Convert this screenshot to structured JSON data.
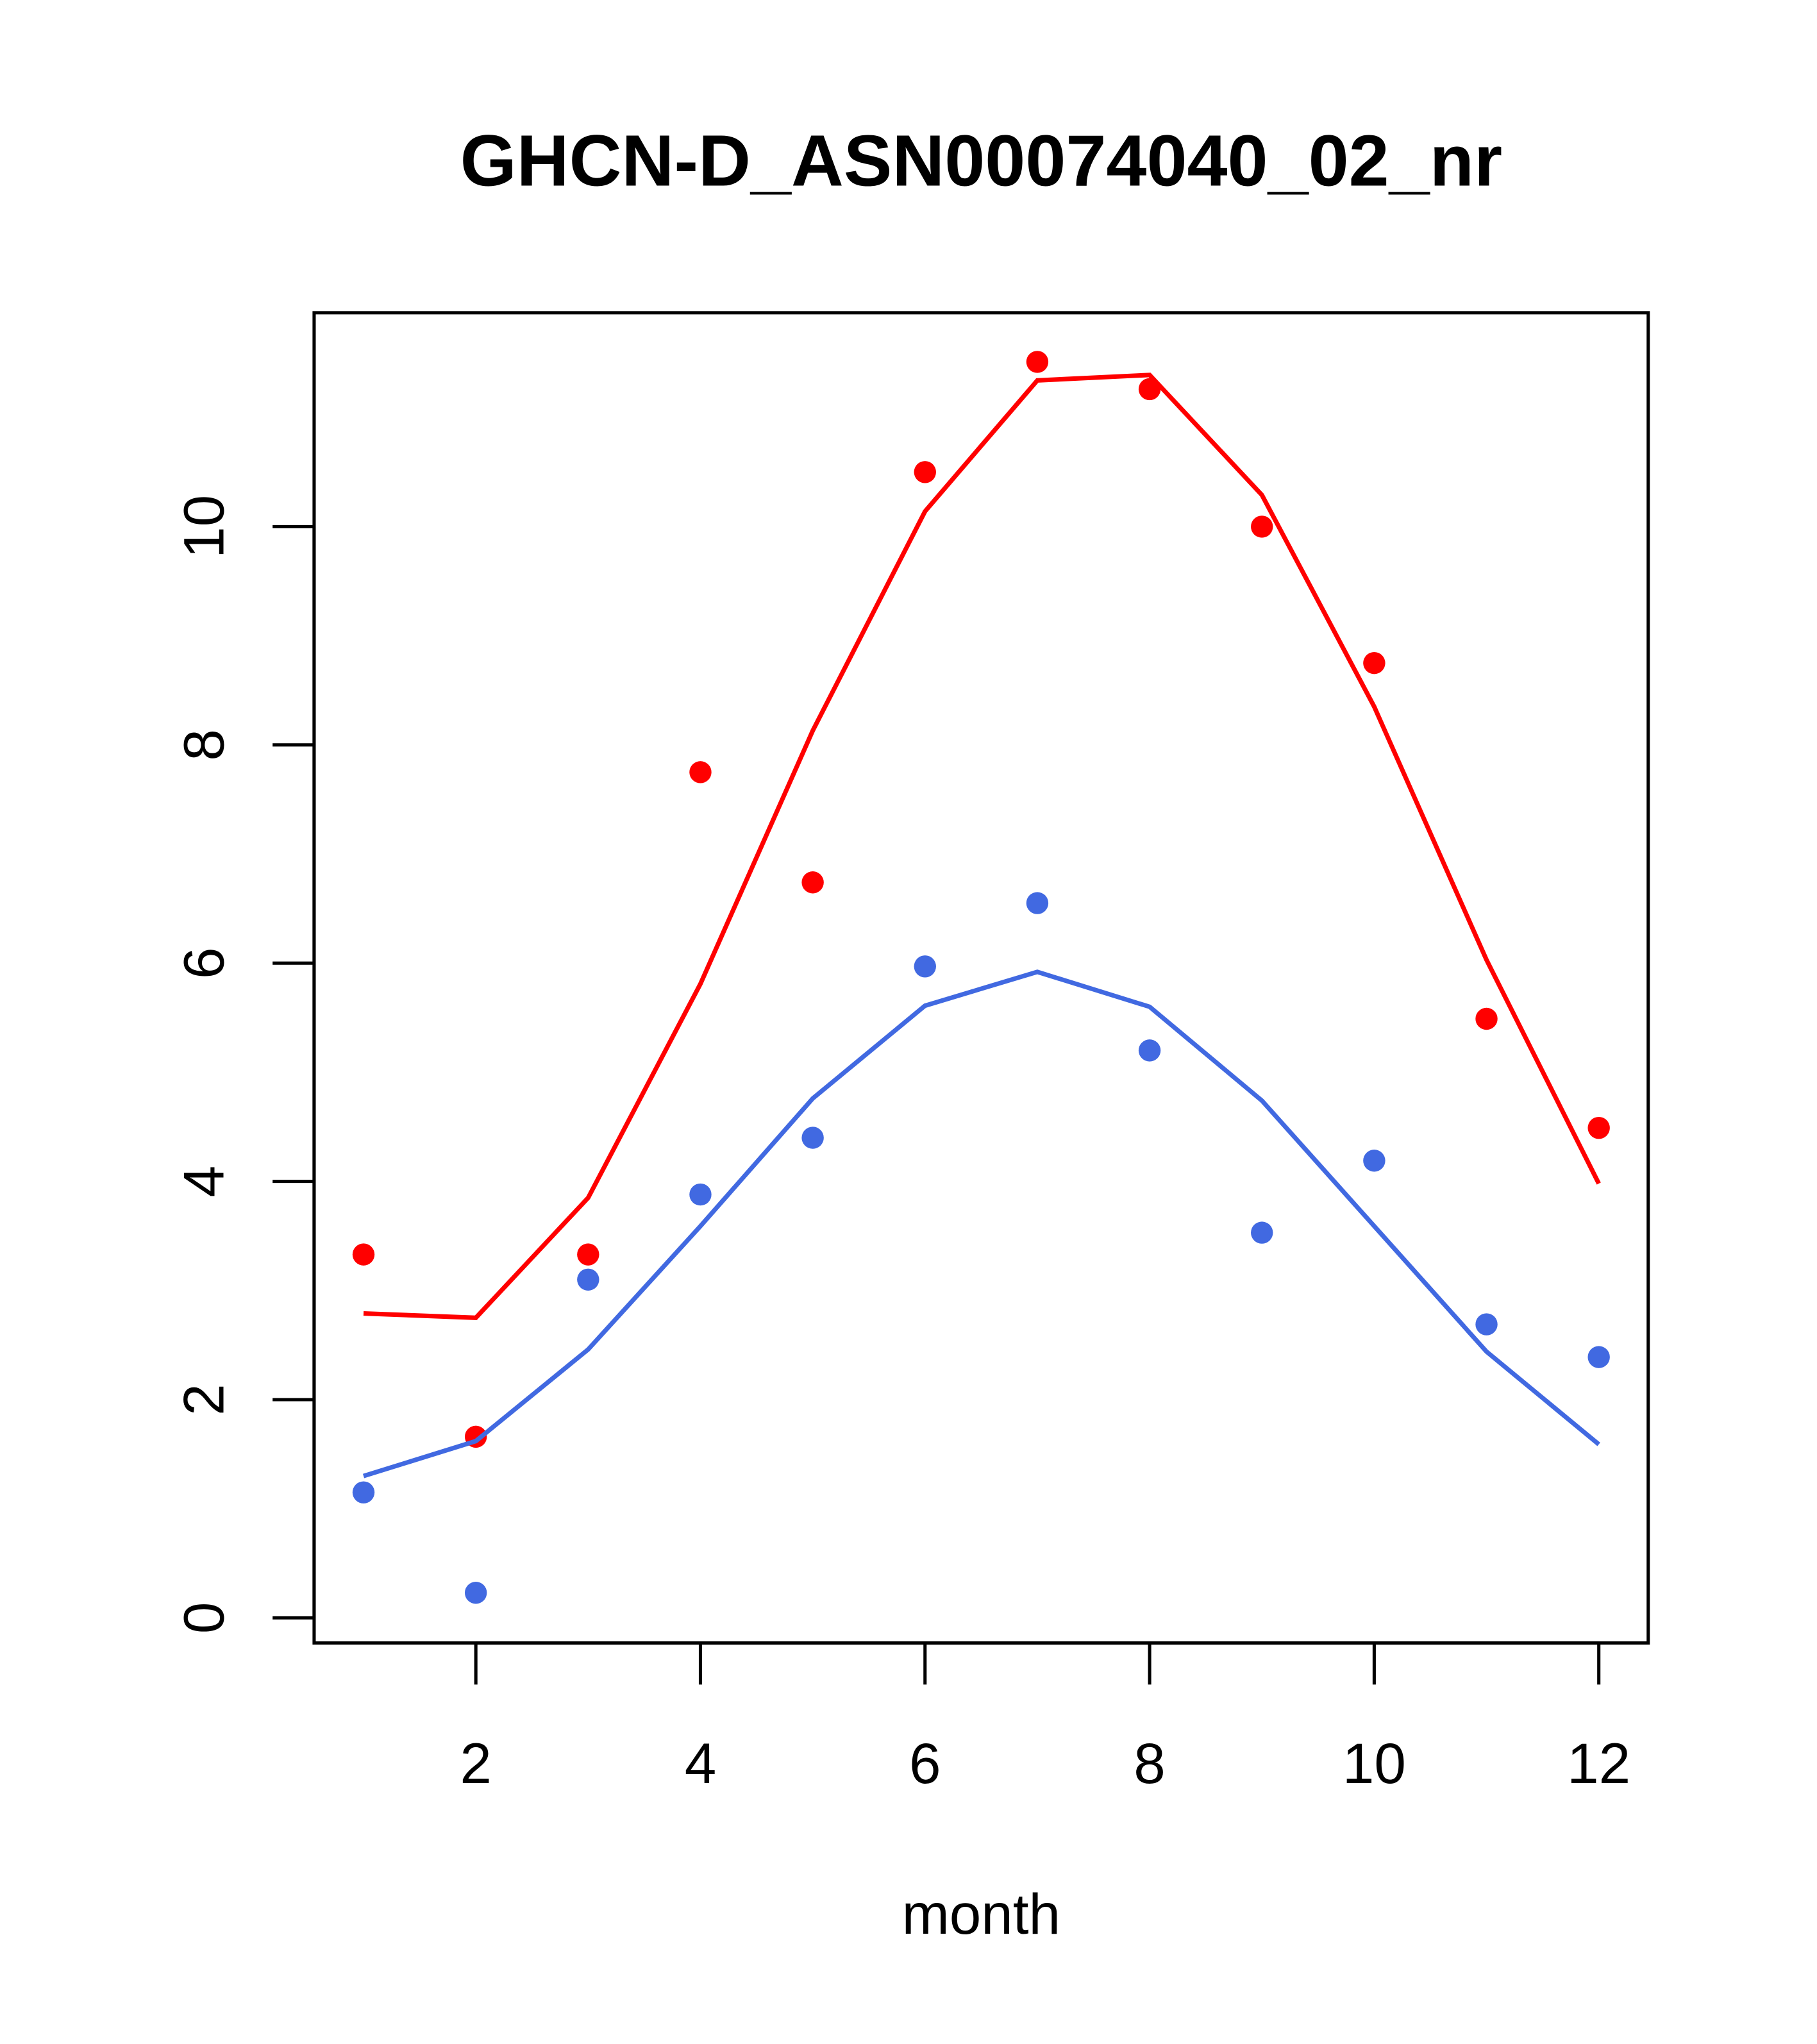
{
  "chart_data": {
    "type": "line",
    "title": "GHCN-D_ASN00074040_02_nr",
    "xlabel": "month",
    "ylabel": "",
    "xlim": [
      0.56,
      12.44
    ],
    "ylim": [
      -0.23,
      11.96
    ],
    "xticks": [
      2,
      4,
      6,
      8,
      10,
      12
    ],
    "yticks": [
      0,
      2,
      4,
      6,
      8,
      10
    ],
    "grid": false,
    "x": [
      1,
      2,
      3,
      4,
      5,
      6,
      7,
      8,
      9,
      10,
      11,
      12
    ],
    "series": [
      {
        "name": "red-points",
        "kind": "points",
        "color": "#ff0000",
        "values": [
          3.33,
          1.66,
          3.33,
          7.75,
          6.74,
          10.5,
          11.51,
          11.26,
          10.0,
          8.75,
          5.49,
          4.49
        ]
      },
      {
        "name": "red-line",
        "kind": "line",
        "color": "#ff0000",
        "values": [
          2.79,
          2.75,
          3.85,
          5.81,
          8.13,
          10.14,
          11.34,
          11.39,
          10.29,
          8.35,
          6.03,
          3.98
        ]
      },
      {
        "name": "blue-points",
        "kind": "points",
        "color": "#4169e1",
        "values": [
          1.15,
          0.23,
          3.1,
          3.88,
          4.4,
          5.97,
          6.55,
          5.2,
          3.53,
          4.19,
          2.69,
          2.39
        ]
      },
      {
        "name": "blue-line",
        "kind": "line",
        "color": "#4169e1",
        "values": [
          1.3,
          1.62,
          2.46,
          3.59,
          4.76,
          5.61,
          5.92,
          5.6,
          4.74,
          3.59,
          2.44,
          1.59
        ]
      }
    ]
  }
}
